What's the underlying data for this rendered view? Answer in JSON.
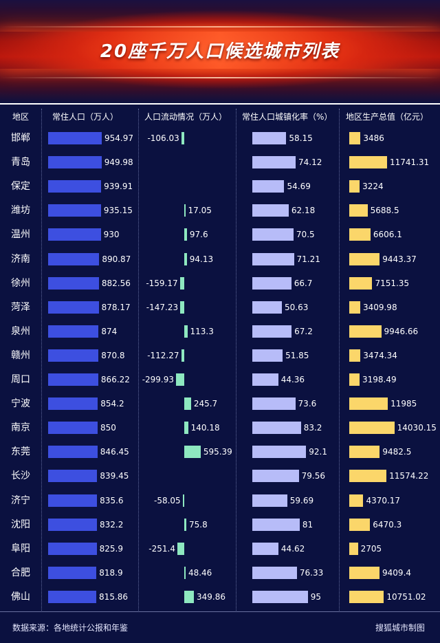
{
  "title": "20座千万人口候选城市列表",
  "headers": {
    "region": "地区",
    "population": "常住人口（万人）",
    "flow": "人口流动情况（万人）",
    "urbanization": "常住人口城镇化率（%）",
    "gdp": "地区生产总值（亿元）"
  },
  "footer": {
    "source": "数据来源：各地统计公报和年鉴",
    "credit": "搜狐城市制图"
  },
  "colors": {
    "population": "#3d4fe0",
    "flow": "#8ee8c0",
    "urbanization": "#b7bcf8",
    "gdp": "#fbd66a"
  },
  "chart_data": {
    "type": "table",
    "categories": [
      "邯郸",
      "青岛",
      "保定",
      "潍坊",
      "温州",
      "济南",
      "徐州",
      "菏泽",
      "泉州",
      "赣州",
      "周口",
      "宁波",
      "南京",
      "东莞",
      "长沙",
      "济宁",
      "沈阳",
      "阜阳",
      "合肥",
      "佛山"
    ],
    "series": [
      {
        "name": "常住人口（万人）",
        "values": [
          954.97,
          949.98,
          939.91,
          935.15,
          930,
          890.87,
          882.56,
          878.17,
          874,
          870.8,
          866.22,
          854.2,
          850,
          846.45,
          839.45,
          835.6,
          832.2,
          825.9,
          818.9,
          815.86
        ]
      },
      {
        "name": "人口流动情况（万人）",
        "values": [
          -106.03,
          null,
          null,
          17.05,
          97.6,
          94.13,
          -159.17,
          -147.23,
          113.3,
          -112.27,
          -299.93,
          245.7,
          140.18,
          595.39,
          null,
          -58.05,
          75.8,
          -251.4,
          48.46,
          349.86
        ]
      },
      {
        "name": "常住人口城镇化率（%）",
        "values": [
          58.15,
          74.12,
          54.69,
          62.18,
          70.5,
          71.21,
          66.7,
          50.63,
          67.2,
          51.85,
          44.36,
          73.6,
          83.2,
          92.1,
          79.56,
          59.69,
          81,
          44.62,
          76.33,
          95
        ]
      },
      {
        "name": "地区生产总值（亿元）",
        "values": [
          3486,
          11741.31,
          3224,
          5688.5,
          6606.1,
          9443.37,
          7151.35,
          3409.98,
          9946.66,
          3474.34,
          3198.49,
          11985,
          14030.15,
          9482.5,
          11574.22,
          4370.17,
          6470.3,
          2705,
          9409.4,
          10751.02
        ]
      }
    ]
  }
}
